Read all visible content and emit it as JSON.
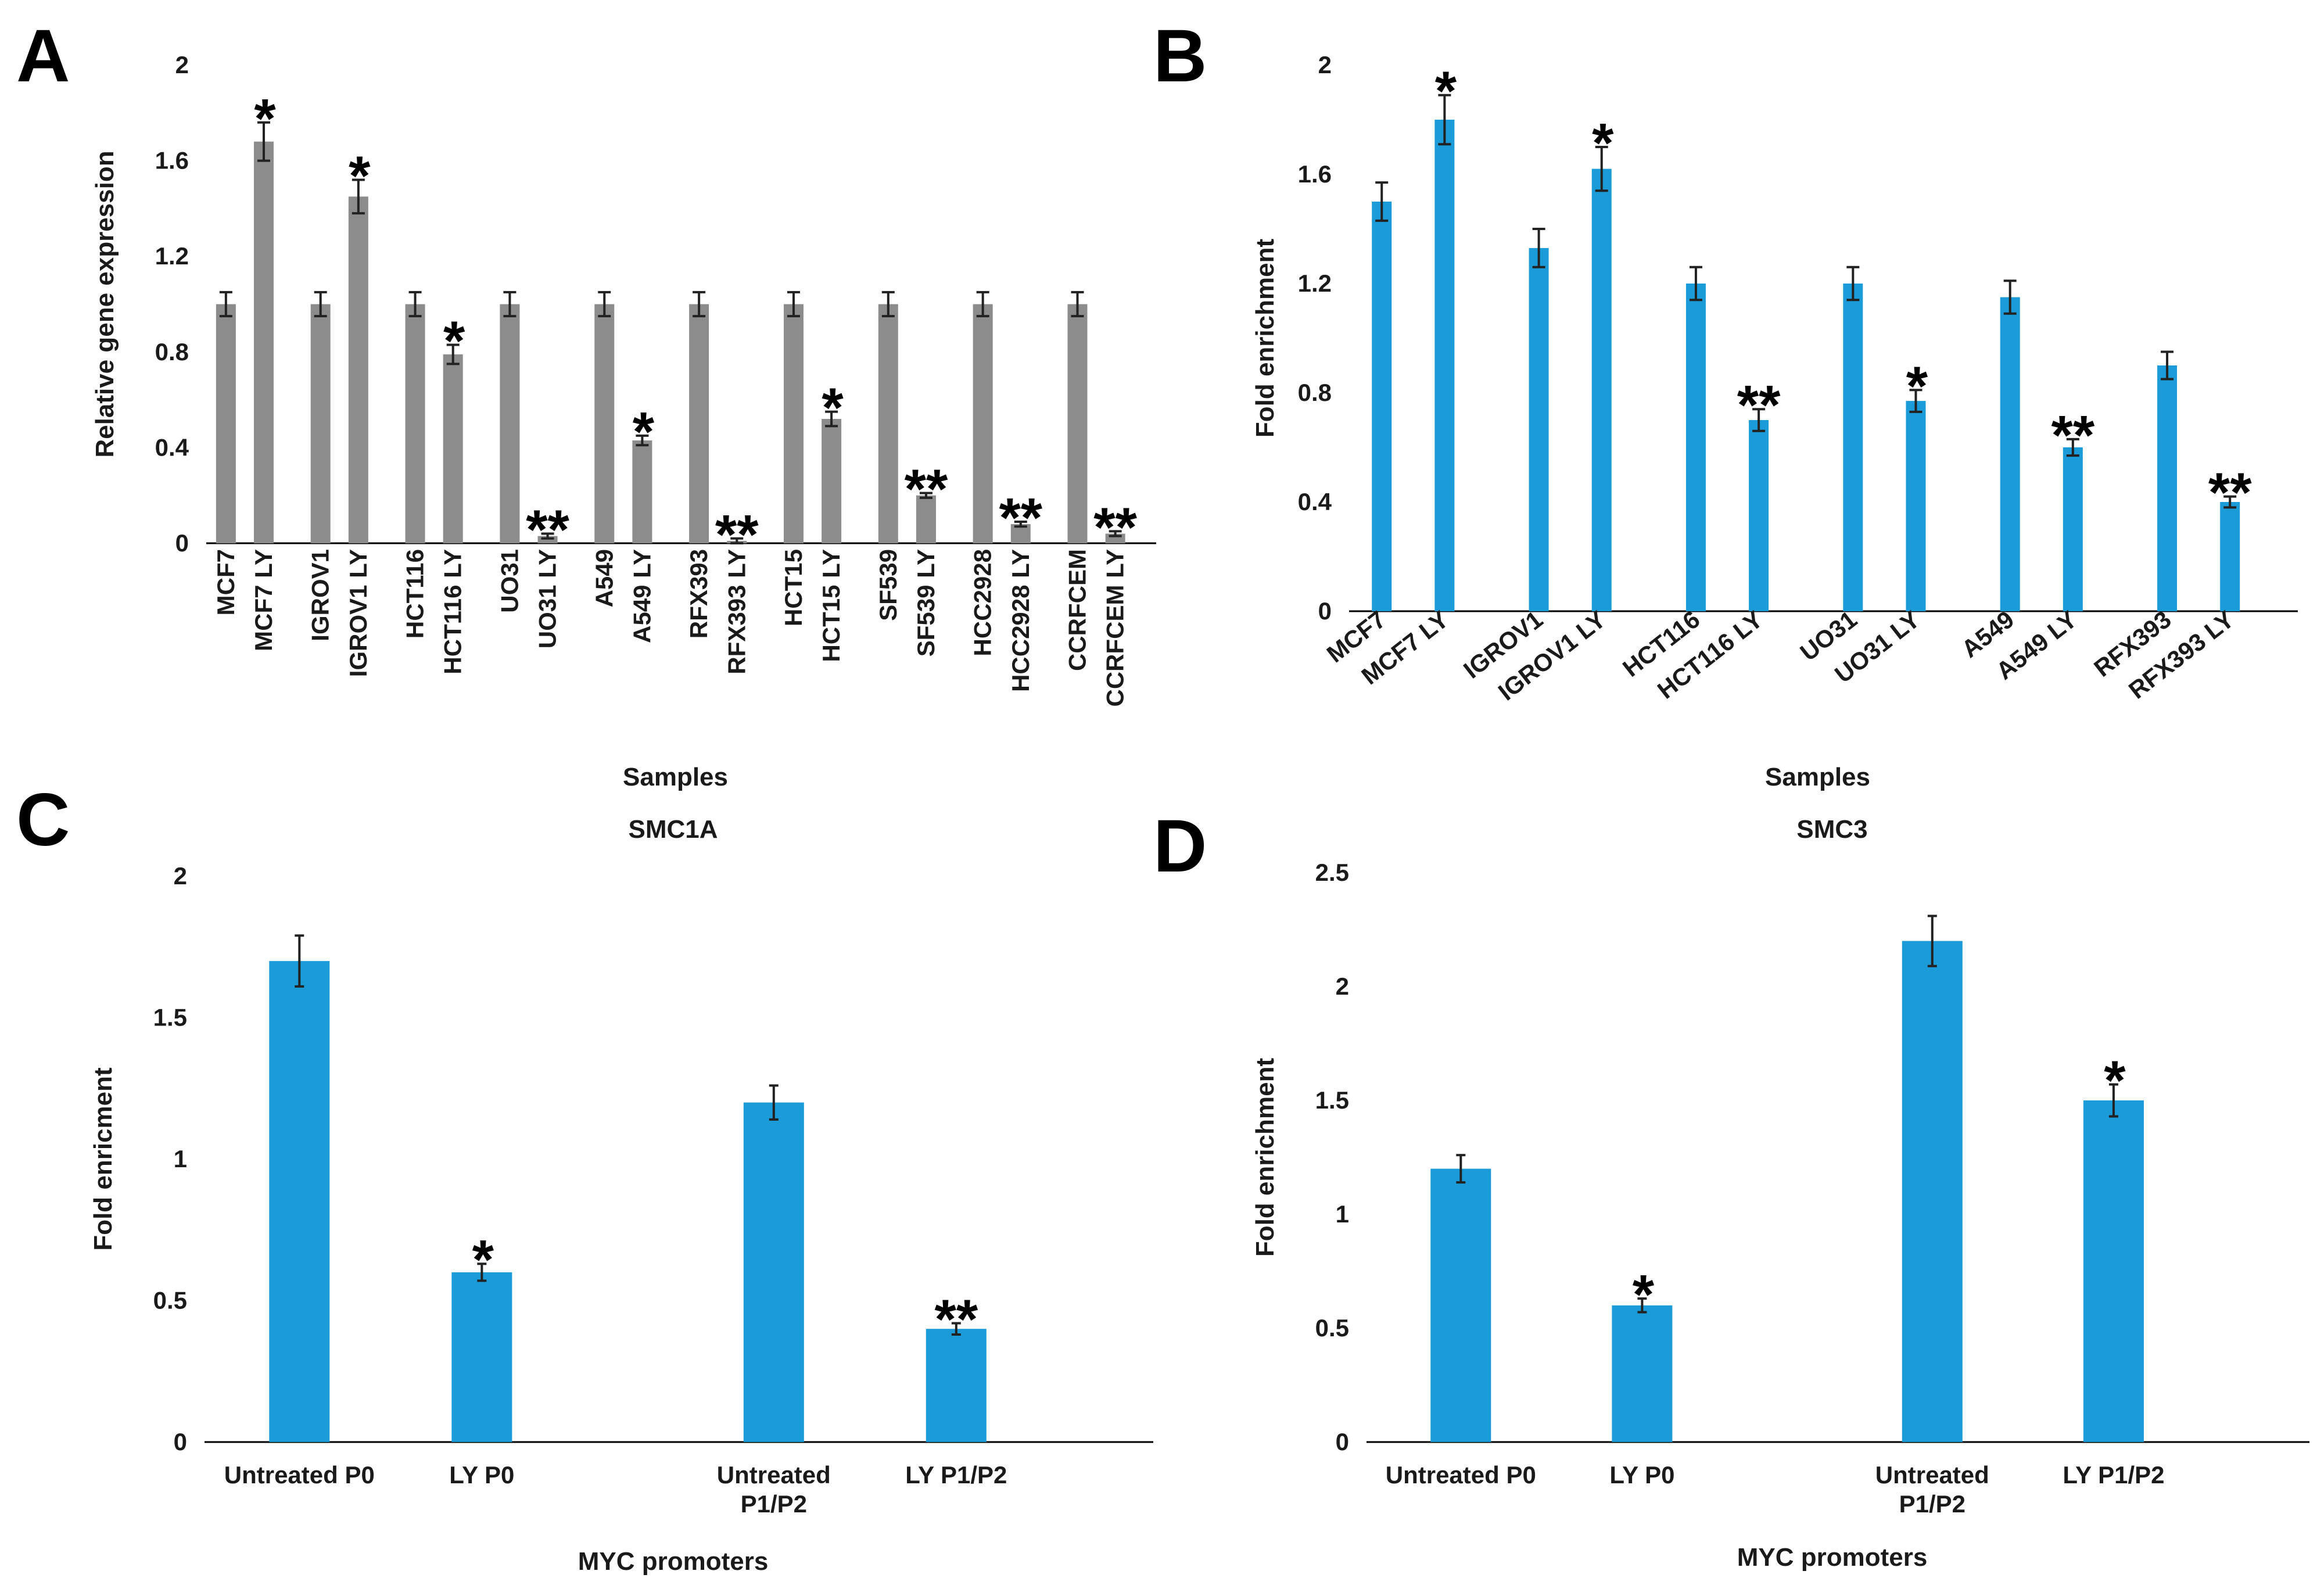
{
  "colors": {
    "grey_bar": "#8c8c8c",
    "blue_bar": "#1b9bd7",
    "axis": "#000000",
    "error": "#222222"
  },
  "chart_data": [
    {
      "panel": "A",
      "type": "bar",
      "title": "",
      "xlabel": "Samples",
      "ylabel": "Relative gene expression",
      "ylim": [
        0,
        2
      ],
      "yticks": [
        "0",
        "0.4",
        "0.8",
        "1.2",
        "1.6",
        "2"
      ],
      "tick_values": [
        0,
        0.4,
        0.8,
        1.2,
        1.6,
        2
      ],
      "groups": [
        {
          "labels": [
            "MCF7",
            "MCF7 LY"
          ],
          "values": [
            1.0,
            1.68
          ],
          "errors": [
            0.05,
            0.08
          ],
          "marker": "*"
        },
        {
          "labels": [
            "IGROV1",
            "IGROV1 LY"
          ],
          "values": [
            1.0,
            1.45
          ],
          "errors": [
            0.05,
            0.07
          ],
          "marker": "*"
        },
        {
          "labels": [
            "HCT116",
            "HCT116 LY"
          ],
          "values": [
            1.0,
            0.79
          ],
          "errors": [
            0.05,
            0.04
          ],
          "marker": "*"
        },
        {
          "labels": [
            "UO31",
            "UO31 LY"
          ],
          "values": [
            1.0,
            0.03
          ],
          "errors": [
            0.05,
            0.01
          ],
          "marker": "**"
        },
        {
          "labels": [
            "A549",
            "A549 LY"
          ],
          "values": [
            1.0,
            0.43
          ],
          "errors": [
            0.05,
            0.02
          ],
          "marker": "*"
        },
        {
          "labels": [
            "RFX393",
            "RFX393 LY"
          ],
          "values": [
            1.0,
            0.01
          ],
          "errors": [
            0.05,
            0.01
          ],
          "marker": "**"
        },
        {
          "labels": [
            "HCT15",
            "HCT15 LY"
          ],
          "values": [
            1.0,
            0.52
          ],
          "errors": [
            0.05,
            0.03
          ],
          "marker": "*"
        },
        {
          "labels": [
            "SF539",
            "SF539 LY"
          ],
          "values": [
            1.0,
            0.2
          ],
          "errors": [
            0.05,
            0.01
          ],
          "marker": "**"
        },
        {
          "labels": [
            "HCC2928",
            "HCC2928 LY"
          ],
          "values": [
            1.0,
            0.08
          ],
          "errors": [
            0.05,
            0.01
          ],
          "marker": "**"
        },
        {
          "labels": [
            "CCRFCEM",
            "CCRFCEM LY"
          ],
          "values": [
            1.0,
            0.04
          ],
          "errors": [
            0.05,
            0.01
          ],
          "marker": "**"
        }
      ]
    },
    {
      "panel": "B",
      "type": "bar",
      "title": "",
      "xlabel": "Samples",
      "ylabel": "Fold enrichment",
      "ylim": [
        0,
        2
      ],
      "yticks": [
        "0",
        "0.4",
        "0.8",
        "1.2",
        "1.6",
        "2"
      ],
      "tick_values": [
        0,
        0.4,
        0.8,
        1.2,
        1.6,
        2
      ],
      "groups": [
        {
          "labels": [
            "MCF7",
            "MCF7 LY"
          ],
          "values": [
            1.5,
            1.8
          ],
          "errors": [
            0.07,
            0.09
          ],
          "marker": "*"
        },
        {
          "labels": [
            "IGROV1",
            "IGROV1 LY"
          ],
          "values": [
            1.33,
            1.62
          ],
          "errors": [
            0.07,
            0.08
          ],
          "marker": "*"
        },
        {
          "labels": [
            "HCT116",
            "HCT116 LY"
          ],
          "values": [
            1.2,
            0.7
          ],
          "errors": [
            0.06,
            0.04
          ],
          "marker": "**"
        },
        {
          "labels": [
            "UO31",
            "UO31 LY"
          ],
          "values": [
            1.2,
            0.77
          ],
          "errors": [
            0.06,
            0.04
          ],
          "marker": "*"
        },
        {
          "labels": [
            "A549",
            "A549 LY"
          ],
          "values": [
            1.15,
            0.6
          ],
          "errors": [
            0.06,
            0.03
          ],
          "marker": "**"
        },
        {
          "labels": [
            "RFX393",
            "RFX393 LY"
          ],
          "values": [
            0.9,
            0.4
          ],
          "errors": [
            0.05,
            0.02
          ],
          "marker": "**"
        }
      ]
    },
    {
      "panel": "C",
      "type": "bar",
      "title": "SMC1A",
      "xlabel": "MYC promoters",
      "ylabel": "Fold enricment",
      "ylim": [
        0,
        2
      ],
      "yticks": [
        "0",
        "0.5",
        "1",
        "1.5",
        "2"
      ],
      "tick_values": [
        0,
        0.5,
        1,
        1.5,
        2
      ],
      "groups": [
        {
          "labels": [
            "Untreated P0",
            "LY P0"
          ],
          "values": [
            1.7,
            0.6
          ],
          "errors": [
            0.09,
            0.03
          ],
          "marker": "*"
        },
        {
          "labels": [
            "Untreated P1/P2",
            "LY P1/P2"
          ],
          "values": [
            1.2,
            0.4
          ],
          "errors": [
            0.06,
            0.02
          ],
          "marker": "**"
        }
      ]
    },
    {
      "panel": "D",
      "type": "bar",
      "title": "SMC3",
      "xlabel": "MYC promoters",
      "ylabel": "Fold enrichment",
      "ylim": [
        0,
        2.5
      ],
      "yticks": [
        "0",
        "0.5",
        "1",
        "1.5",
        "2",
        "2.5"
      ],
      "tick_values": [
        0,
        0.5,
        1,
        1.5,
        2,
        2.5
      ],
      "groups": [
        {
          "labels": [
            "Untreated P0",
            "LY P0"
          ],
          "values": [
            1.2,
            0.6
          ],
          "errors": [
            0.06,
            0.03
          ],
          "marker": "*"
        },
        {
          "labels": [
            "Untreated P1/P2",
            "LY P1/P2"
          ],
          "values": [
            2.2,
            1.5
          ],
          "errors": [
            0.11,
            0.07
          ],
          "marker": "*"
        }
      ]
    }
  ]
}
